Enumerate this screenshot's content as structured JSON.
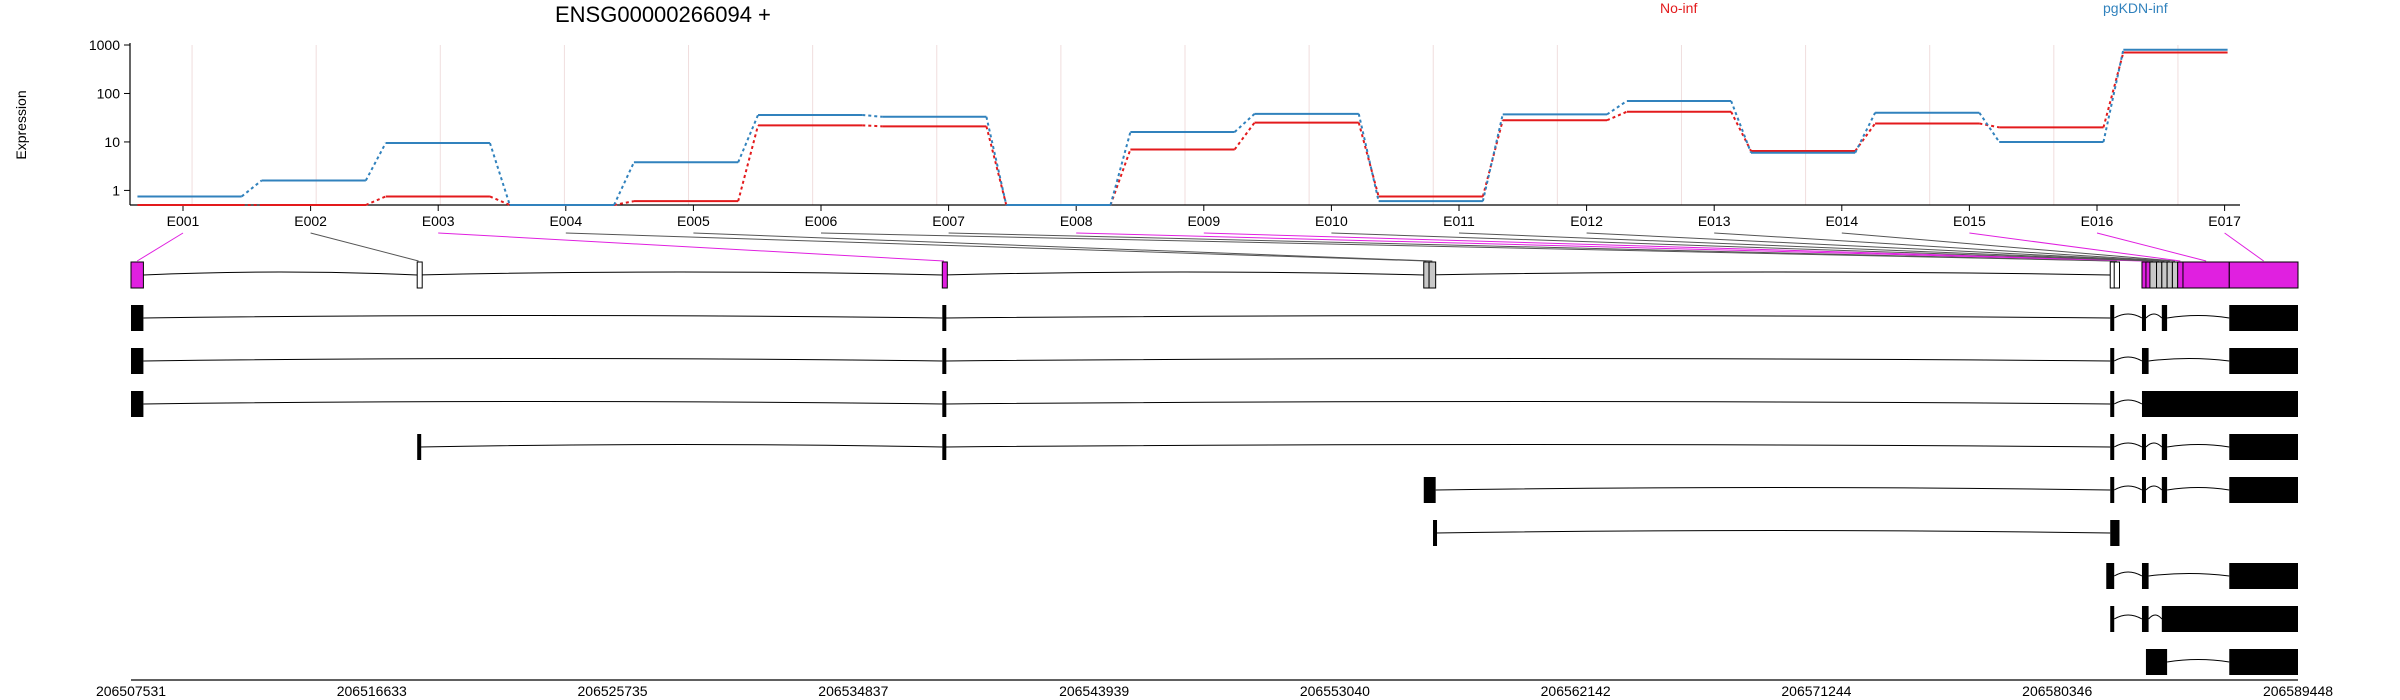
{
  "title": "ENSG00000266094 +",
  "legend": [
    {
      "label": "No-inf",
      "color": "#e31a1c"
    },
    {
      "label": "pgKDN-inf",
      "color": "#3182bd"
    }
  ],
  "colors": {
    "highlight": "#e020e0",
    "neutral": "#c8c8c8",
    "transcript": "#000000"
  },
  "chart_data": {
    "type": "line",
    "ylabel": "Expression",
    "yscale": "log",
    "ylim": [
      0.5,
      1000
    ],
    "yticks": [
      1,
      10,
      100,
      1000
    ],
    "yticklabels": [
      "1",
      "10",
      "100",
      "1000"
    ],
    "categories": [
      "E001",
      "E002",
      "E003",
      "E004",
      "E005",
      "E006",
      "E007",
      "E008",
      "E009",
      "E010",
      "E011",
      "E012",
      "E013",
      "E014",
      "E015",
      "E016",
      "E017"
    ],
    "series": [
      {
        "name": "No-inf",
        "color": "#e31a1c",
        "values": [
          0.5,
          0.5,
          0.75,
          0.5,
          0.6,
          22,
          21,
          0.5,
          7,
          25,
          0.75,
          28,
          42,
          6.5,
          24,
          20,
          700
        ]
      },
      {
        "name": "pgKDN-inf",
        "color": "#3182bd",
        "values": [
          0.75,
          1.6,
          9.5,
          0.5,
          3.8,
          36,
          33,
          0.5,
          16,
          38,
          0.6,
          37,
          70,
          6,
          40,
          10,
          800
        ]
      }
    ],
    "genomic_axis": {
      "start": 206507531,
      "end": 206589448,
      "ticks": [
        "206507531",
        "206516633",
        "206525735",
        "206534837",
        "206543939",
        "206553040",
        "206562142",
        "206571244",
        "206580346",
        "206589448"
      ]
    },
    "exons": [
      {
        "id": "E001",
        "start": 206507531,
        "end": 206508000,
        "highlight": true
      },
      {
        "id": "E002",
        "start": 206518350,
        "end": 206518450,
        "highlight": false
      },
      {
        "id": "E003",
        "start": 206538200,
        "end": 206538330,
        "highlight": true
      },
      {
        "id": "E004",
        "start": 206556400,
        "end": 206556600,
        "highlight": false
      },
      {
        "id": "E005",
        "start": 206556600,
        "end": 206556850,
        "highlight": false
      },
      {
        "id": "E006",
        "start": 206582350,
        "end": 206582500,
        "highlight": false
      },
      {
        "id": "E007",
        "start": 206582500,
        "end": 206582700,
        "highlight": false
      },
      {
        "id": "E008",
        "start": 206583550,
        "end": 206583700,
        "highlight": true
      },
      {
        "id": "E009",
        "start": 206583700,
        "end": 206583850,
        "highlight": true
      },
      {
        "id": "E010",
        "start": 206583850,
        "end": 206584100,
        "highlight": false
      },
      {
        "id": "E011",
        "start": 206584100,
        "end": 206584300,
        "highlight": false
      },
      {
        "id": "E012",
        "start": 206584300,
        "end": 206584500,
        "highlight": false
      },
      {
        "id": "E013",
        "start": 206584500,
        "end": 206584700,
        "highlight": false
      },
      {
        "id": "E014",
        "start": 206584700,
        "end": 206584900,
        "highlight": false
      },
      {
        "id": "E015",
        "start": 206584900,
        "end": 206585100,
        "highlight": true
      },
      {
        "id": "E016",
        "start": 206585100,
        "end": 206586850,
        "highlight": true
      },
      {
        "id": "E017",
        "start": 206586850,
        "end": 206589448,
        "highlight": true
      }
    ],
    "transcripts": [
      {
        "blocks": [
          [
            206507531,
            206508000
          ],
          [
            206538200,
            206538330
          ],
          [
            206582350,
            206582500
          ],
          [
            206583550,
            206583700
          ],
          [
            206584300,
            206584500
          ],
          [
            206586850,
            206589448
          ]
        ]
      },
      {
        "blocks": [
          [
            206507531,
            206508000
          ],
          [
            206538200,
            206538330
          ],
          [
            206582350,
            206582500
          ],
          [
            206583550,
            206583800
          ],
          [
            206586850,
            206589448
          ]
        ]
      },
      {
        "blocks": [
          [
            206507531,
            206508000
          ],
          [
            206538200,
            206538330
          ],
          [
            206582350,
            206582500
          ],
          [
            206583550,
            206589448
          ]
        ]
      },
      {
        "blocks": [
          [
            206518350,
            206518450
          ],
          [
            206538200,
            206538330
          ],
          [
            206582350,
            206582500
          ],
          [
            206583550,
            206583700
          ],
          [
            206584300,
            206584500
          ],
          [
            206586850,
            206589448
          ]
        ]
      },
      {
        "blocks": [
          [
            206556400,
            206556850
          ],
          [
            206582350,
            206582500
          ],
          [
            206583550,
            206583700
          ],
          [
            206584300,
            206584500
          ],
          [
            206586850,
            206589448
          ]
        ]
      },
      {
        "blocks": [
          [
            206556750,
            206556850
          ],
          [
            206582350,
            206582700
          ]
        ]
      },
      {
        "blocks": [
          [
            206582200,
            206582500
          ],
          [
            206583550,
            206583800
          ],
          [
            206586850,
            206589448
          ]
        ]
      },
      {
        "blocks": [
          [
            206582350,
            206582500
          ],
          [
            206583550,
            206583800
          ],
          [
            206584300,
            206589448
          ]
        ]
      },
      {
        "blocks": [
          [
            206583700,
            206584500
          ],
          [
            206586850,
            206589448
          ]
        ]
      }
    ]
  }
}
